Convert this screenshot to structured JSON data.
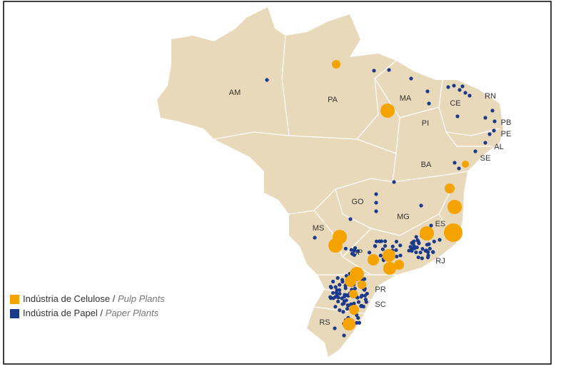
{
  "map": {
    "regions": [
      "AM",
      "PA",
      "MA",
      "CE",
      "RN",
      "PB",
      "PE",
      "AL",
      "SE",
      "PI",
      "BA",
      "GO",
      "MG",
      "ES",
      "MS",
      "SP",
      "RJ",
      "PR",
      "SC",
      "RS"
    ],
    "legend": [
      {
        "label_pt": "Indústria de Celulose /",
        "label_en": "Pulp Plants",
        "color": "#f5a300"
      },
      {
        "label_pt": "Indústria de Papel /",
        "label_en": "Paper Plants",
        "color": "#1c3a8c"
      }
    ]
  }
}
